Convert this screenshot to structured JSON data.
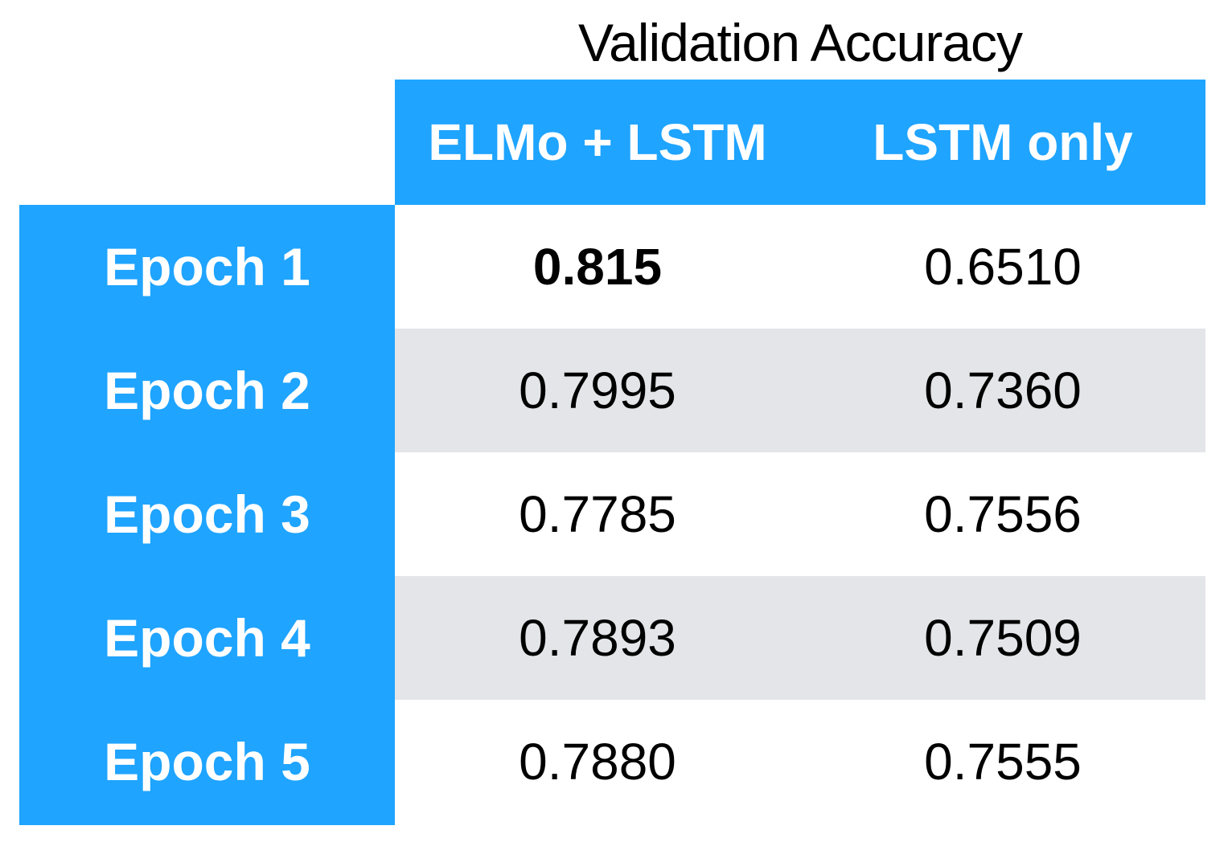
{
  "chart_data": {
    "type": "table",
    "title": "Validation Accuracy",
    "columns": [
      "ELMo + LSTM",
      "LSTM only"
    ],
    "rows": [
      {
        "label": "Epoch 1",
        "values": [
          "0.815",
          "0.6510"
        ],
        "bold": [
          true,
          false
        ]
      },
      {
        "label": "Epoch 2",
        "values": [
          "0.7995",
          "0.7360"
        ],
        "bold": [
          false,
          false
        ]
      },
      {
        "label": "Epoch 3",
        "values": [
          "0.7785",
          "0.7556"
        ],
        "bold": [
          false,
          false
        ]
      },
      {
        "label": "Epoch 4",
        "values": [
          "0.7893",
          "0.7509"
        ],
        "bold": [
          false,
          false
        ]
      },
      {
        "label": "Epoch 5",
        "values": [
          "0.7880",
          "0.7555"
        ],
        "bold": [
          false,
          false
        ]
      }
    ]
  },
  "colors": {
    "header_bg": "#1fa4ff",
    "alt_row_bg": "#e4e5e9",
    "row_bg": "#ffffff"
  }
}
